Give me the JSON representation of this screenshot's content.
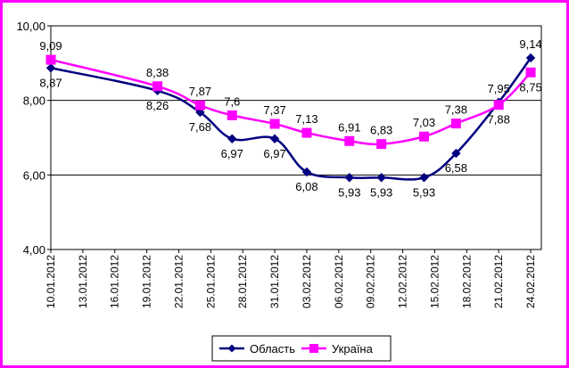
{
  "chart_data": {
    "type": "line",
    "categories": [
      "10.01.2012",
      "13.01.2012",
      "16.01.2012",
      "19.01.2012",
      "22.01.2012",
      "25.01.2012",
      "28.01.2012",
      "31.01.2012",
      "03.02.2012",
      "06.02.2012",
      "09.02.2012",
      "12.02.2012",
      "15.02.2012",
      "18.02.2012",
      "21.02.2012",
      "24.02.2012"
    ],
    "y_ticks": [
      "4,00",
      "6,00",
      "8,00",
      "10,00"
    ],
    "ylim": [
      4,
      10
    ],
    "grid": "horizontal",
    "legend_position": "bottom",
    "series": [
      {
        "name": "Область",
        "color": "#000080",
        "marker": "diamond",
        "points": [
          {
            "x": "10.01.2012",
            "y": 8.87,
            "label": "8,87"
          },
          {
            "x": "20.01.2012",
            "y": 8.26,
            "label": "8,26"
          },
          {
            "x": "24.01.2012",
            "y": 7.68,
            "label": "7,68"
          },
          {
            "x": "27.01.2012",
            "y": 6.97,
            "label": "6,97"
          },
          {
            "x": "31.01.2012",
            "y": 6.97,
            "label": "6,97"
          },
          {
            "x": "03.02.2012",
            "y": 6.08,
            "label": "6,08"
          },
          {
            "x": "07.02.2012",
            "y": 5.93,
            "label": "5,93"
          },
          {
            "x": "10.02.2012",
            "y": 5.93,
            "label": "5,93"
          },
          {
            "x": "14.02.2012",
            "y": 5.93,
            "label": "5,93"
          },
          {
            "x": "17.02.2012",
            "y": 6.58,
            "label": "6,58"
          },
          {
            "x": "21.02.2012",
            "y": 7.95,
            "label": "7,95"
          },
          {
            "x": "24.02.2012",
            "y": 9.14,
            "label": "9,14"
          }
        ]
      },
      {
        "name": "Україна",
        "color": "#ff00ff",
        "marker": "square",
        "points": [
          {
            "x": "10.01.2012",
            "y": 9.09,
            "label": "9,09"
          },
          {
            "x": "20.01.2012",
            "y": 8.38,
            "label": "8,38"
          },
          {
            "x": "24.01.2012",
            "y": 7.87,
            "label": "7,87"
          },
          {
            "x": "27.01.2012",
            "y": 7.6,
            "label": "7,6"
          },
          {
            "x": "31.01.2012",
            "y": 7.37,
            "label": "7,37"
          },
          {
            "x": "03.02.2012",
            "y": 7.13,
            "label": "7,13"
          },
          {
            "x": "07.02.2012",
            "y": 6.91,
            "label": "6,91"
          },
          {
            "x": "10.02.2012",
            "y": 6.83,
            "label": "6,83"
          },
          {
            "x": "14.02.2012",
            "y": 7.03,
            "label": "7,03"
          },
          {
            "x": "17.02.2012",
            "y": 7.38,
            "label": "7,38"
          },
          {
            "x": "21.02.2012",
            "y": 7.88,
            "label": "7,88"
          },
          {
            "x": "24.02.2012",
            "y": 8.75,
            "label": "8,75"
          }
        ]
      }
    ]
  }
}
